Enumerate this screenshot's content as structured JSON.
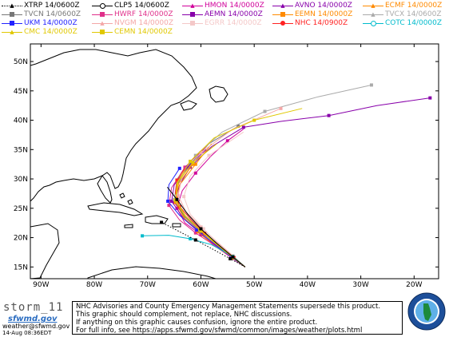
{
  "legend": [
    {
      "label": "XTRP 14/0600Z",
      "color": "#000000",
      "marker": "triangle",
      "dash": true
    },
    {
      "label": "CLP5 14/0600Z",
      "color": "#000000",
      "marker": "circle-open"
    },
    {
      "label": "HMON 14/0000Z",
      "color": "#d0009a",
      "marker": "triangle"
    },
    {
      "label": "AVNO 14/0000Z",
      "color": "#8800aa",
      "marker": "triangle"
    },
    {
      "label": "ECMF 14/0000Z",
      "color": "#ff8a00",
      "marker": "triangle"
    },
    {
      "label": "TVCN 14/0600Z",
      "color": "#777777",
      "marker": "square"
    },
    {
      "label": "HWRF 14/0000Z",
      "color": "#e0308a",
      "marker": "square"
    },
    {
      "label": "AEMN 14/0000Z",
      "color": "#8800aa",
      "marker": "square"
    },
    {
      "label": "EEMN 14/0000Z",
      "color": "#ff8a00",
      "marker": "square"
    },
    {
      "label": "TVCX 14/0600Z",
      "color": "#aaaaaa",
      "marker": "triangle"
    },
    {
      "label": "UKM 14/0000Z",
      "color": "#2222ff",
      "marker": "square"
    },
    {
      "label": "NVGM 14/0000Z",
      "color": "#f4a7a7",
      "marker": "triangle"
    },
    {
      "label": "EGRR 14/0000Z",
      "color": "#f4c8c8",
      "marker": "square"
    },
    {
      "label": "NHC 14/0900Z",
      "color": "#ff2222",
      "marker": "circle"
    },
    {
      "label": "COTC 14/0000Z",
      "color": "#00bbcc",
      "marker": "circle-open"
    },
    {
      "label": "CMC 14/0000Z",
      "color": "#e0c800",
      "marker": "triangle"
    },
    {
      "label": "CEMN 14/0000Z",
      "color": "#e0c800",
      "marker": "square"
    }
  ],
  "axes": {
    "lat_labels": [
      "50N",
      "45N",
      "40N",
      "35N",
      "30N",
      "25N",
      "20N",
      "15N"
    ],
    "lon_labels": [
      "90W",
      "80W",
      "70W",
      "60W",
      "50W",
      "40W",
      "30W",
      "20W"
    ],
    "lat_values": [
      50,
      45,
      40,
      35,
      30,
      25,
      20,
      15
    ],
    "lon_values": [
      -90,
      -80,
      -70,
      -60,
      -50,
      -40,
      -30,
      -20
    ]
  },
  "tracks": [
    {
      "color": "#d0009a",
      "points": [
        [
          -51.7,
          15
        ],
        [
          -54,
          16.5
        ],
        [
          -57,
          18.5
        ],
        [
          -60,
          20.5
        ],
        [
          -63,
          22.5
        ],
        [
          -64.5,
          25
        ],
        [
          -63.5,
          28
        ],
        [
          -61,
          31
        ],
        [
          -58,
          34
        ],
        [
          -55,
          36.5
        ],
        [
          -52,
          38.5
        ]
      ]
    },
    {
      "color": "#8800aa",
      "points": [
        [
          -51.7,
          15
        ],
        [
          -54,
          16.7
        ],
        [
          -57,
          18.8
        ],
        [
          -60,
          21
        ],
        [
          -63,
          23.5
        ],
        [
          -65,
          26
        ],
        [
          -64,
          29
        ],
        [
          -62,
          32
        ],
        [
          -58,
          35.5
        ],
        [
          -52,
          38.8
        ],
        [
          -45,
          39.8
        ],
        [
          -36,
          40.8
        ],
        [
          -27,
          42.5
        ],
        [
          -17,
          43.8
        ]
      ]
    },
    {
      "color": "#ff8a00",
      "points": [
        [
          -51.7,
          15
        ],
        [
          -54,
          16.5
        ],
        [
          -57.5,
          18.6
        ],
        [
          -60.5,
          21
        ],
        [
          -63,
          23.2
        ],
        [
          -64.5,
          26
        ],
        [
          -64,
          29
        ],
        [
          -61,
          32.5
        ],
        [
          -58,
          36
        ]
      ]
    },
    {
      "color": "#777777",
      "points": [
        [
          -51.7,
          15
        ],
        [
          -54,
          16.6
        ],
        [
          -57,
          18.8
        ],
        [
          -60,
          21
        ],
        [
          -63,
          23.5
        ],
        [
          -64.8,
          26
        ],
        [
          -64.5,
          29
        ],
        [
          -62,
          32.5
        ],
        [
          -58.5,
          36
        ],
        [
          -53,
          39
        ]
      ]
    },
    {
      "color": "#e0308a",
      "points": [
        [
          -51.7,
          15
        ],
        [
          -54.2,
          16.5
        ],
        [
          -57.5,
          18.7
        ],
        [
          -61,
          20.8
        ],
        [
          -64,
          23
        ],
        [
          -66,
          25.5
        ],
        [
          -65.5,
          28.5
        ],
        [
          -63,
          32
        ],
        [
          -59,
          35.5
        ]
      ]
    },
    {
      "color": "#8800aa",
      "points": [
        [
          -51.7,
          15
        ],
        [
          -54,
          16.7
        ],
        [
          -57,
          19
        ],
        [
          -60.5,
          21.2
        ],
        [
          -63.5,
          23.6
        ],
        [
          -65.5,
          26.2
        ],
        [
          -65,
          29
        ],
        [
          -62.5,
          32
        ],
        [
          -59,
          35
        ]
      ]
    },
    {
      "color": "#ff8a00",
      "points": [
        [
          -51.7,
          15
        ],
        [
          -54,
          16.6
        ],
        [
          -57.2,
          18.8
        ],
        [
          -60.5,
          21
        ],
        [
          -63.2,
          23.4
        ],
        [
          -64.8,
          26
        ],
        [
          -64.2,
          29.2
        ],
        [
          -61.5,
          32.5
        ]
      ]
    },
    {
      "color": "#aaaaaa",
      "points": [
        [
          -51.7,
          15
        ],
        [
          -54,
          16.7
        ],
        [
          -57,
          19
        ],
        [
          -60,
          21.3
        ],
        [
          -63,
          23.8
        ],
        [
          -65,
          26.5
        ],
        [
          -64.5,
          30
        ],
        [
          -61,
          34
        ],
        [
          -56,
          38
        ],
        [
          -48,
          41.5
        ],
        [
          -38,
          44
        ],
        [
          -28,
          46
        ]
      ]
    },
    {
      "color": "#2222ff",
      "points": [
        [
          -51.7,
          15
        ],
        [
          -54.3,
          16.7
        ],
        [
          -57.6,
          19
        ],
        [
          -60.8,
          21.3
        ],
        [
          -64,
          23.8
        ],
        [
          -66.2,
          26.2
        ],
        [
          -66,
          29
        ],
        [
          -64,
          31.8
        ]
      ]
    },
    {
      "color": "#f4a7a7",
      "points": [
        [
          -51.7,
          15
        ],
        [
          -54,
          16.9
        ],
        [
          -57,
          19.3
        ],
        [
          -60,
          21.8
        ],
        [
          -62.8,
          24.4
        ],
        [
          -64.3,
          27.2
        ],
        [
          -63.5,
          30.5
        ],
        [
          -60,
          34.5
        ],
        [
          -54,
          38.5
        ],
        [
          -45,
          42
        ]
      ]
    },
    {
      "color": "#f4c8c8",
      "points": [
        [
          -51.7,
          15
        ],
        [
          -54,
          16.8
        ],
        [
          -56.8,
          19
        ],
        [
          -59.5,
          21.5
        ],
        [
          -62,
          24
        ],
        [
          -63.2,
          27
        ],
        [
          -62,
          30.5
        ],
        [
          -58.5,
          34
        ],
        [
          -52,
          38
        ]
      ]
    },
    {
      "color": "#ff2222",
      "points": [
        [
          -51.7,
          15
        ],
        [
          -53.8,
          16.6
        ],
        [
          -56.5,
          18.6
        ],
        [
          -59.3,
          20.7
        ],
        [
          -61.8,
          23
        ],
        [
          -64,
          25.3
        ],
        [
          -64.8,
          27.6
        ],
        [
          -64.5,
          29.8
        ],
        [
          -63,
          31.8
        ]
      ]
    },
    {
      "color": "#00bbcc",
      "points": [
        [
          -51.7,
          15
        ],
        [
          -54,
          16.8
        ],
        [
          -58,
          18.8
        ],
        [
          -62,
          19.8
        ],
        [
          -66,
          20.4
        ],
        [
          -71,
          20.3
        ]
      ]
    },
    {
      "color": "#e0c800",
      "points": [
        [
          -51.7,
          15
        ],
        [
          -54,
          16.6
        ],
        [
          -57,
          18.8
        ],
        [
          -60,
          21.1
        ],
        [
          -62.8,
          23.6
        ],
        [
          -64.7,
          26.3
        ],
        [
          -64.5,
          29.3
        ],
        [
          -62,
          33
        ],
        [
          -57.5,
          37
        ],
        [
          -50,
          40
        ],
        [
          -41,
          42
        ]
      ]
    },
    {
      "color": "#e0c800",
      "points": [
        [
          -51.7,
          15
        ],
        [
          -54,
          16.7
        ],
        [
          -57,
          19
        ],
        [
          -60.2,
          21.3
        ],
        [
          -63,
          23.7
        ],
        [
          -64.8,
          26.4
        ],
        [
          -64.3,
          29.5
        ],
        [
          -61.5,
          32.8
        ],
        [
          -57,
          36
        ]
      ]
    },
    {
      "color": "#000000",
      "points": [
        [
          -51.7,
          15
        ],
        [
          -54.5,
          16.4
        ],
        [
          -57.7,
          18
        ],
        [
          -61,
          19.6
        ],
        [
          -64.2,
          21.1
        ],
        [
          -67.4,
          22.6
        ]
      ],
      "dash": true
    },
    {
      "color": "#000000",
      "points": [
        [
          -51.7,
          15
        ],
        [
          -54,
          16.7
        ],
        [
          -57,
          19
        ],
        [
          -60,
          21.5
        ],
        [
          -62.5,
          24
        ],
        [
          -64.5,
          26.5
        ],
        [
          -66.3,
          28.6
        ]
      ]
    }
  ],
  "footer": {
    "storm_name": "storm_11",
    "logo_text": "sfwmd.gov",
    "contact": "weather@sfwmd.gov",
    "timestamp": "14-Aug 08:36EDT",
    "disclaimer": [
      "NHC Advisories and County Emergency Management Statements supersede this product.",
      "This graphic should complement, not replace, NHC discussions.",
      "If anything on this graphic causes confusion, ignore the entire product.",
      "For full info, see  https://apps.sfwmd.gov/sfwmd/common/images/weather/plots.html"
    ]
  },
  "seal": {
    "text": "SOUTH FLORIDA WATER MANAGEMENT DISTRICT",
    "colors": [
      "#1d4f9a",
      "#ffffff",
      "#5fb0e8"
    ]
  }
}
